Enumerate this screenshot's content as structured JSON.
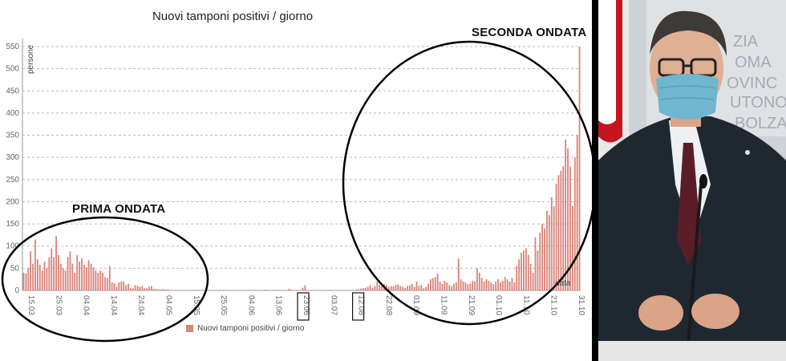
{
  "chart_data": {
    "type": "bar",
    "title": "Nuovi tamponi positivi / giorno",
    "ylabel": "persone",
    "xlabel": "data",
    "legend": "Nuovi tamponi positivi / giorno",
    "legend_placement": "bottom",
    "color": "#d9837a",
    "ylim": [
      0,
      550
    ],
    "yticks": [
      0,
      50,
      100,
      150,
      200,
      250,
      300,
      350,
      400,
      450,
      500,
      550
    ],
    "grid": true,
    "start_date": "15.03",
    "xtick_labels": [
      "15.03",
      "25.03",
      "04.04",
      "14.04",
      "24.04",
      "04.05",
      "15.05",
      "25.05",
      "04.06",
      "13.06",
      "23.06",
      "03.07",
      "12.08",
      "22.08",
      "01.09",
      "11.09",
      "21.09",
      "01.10",
      "11.10",
      "21.10",
      "31.10"
    ],
    "boxed_ticks": [
      "23.06",
      "12.08"
    ],
    "values": [
      40,
      38,
      50,
      88,
      60,
      115,
      70,
      58,
      45,
      65,
      50,
      75,
      95,
      75,
      122,
      80,
      60,
      50,
      45,
      75,
      88,
      60,
      40,
      80,
      65,
      72,
      58,
      52,
      68,
      60,
      52,
      45,
      40,
      45,
      40,
      30,
      28,
      55,
      18,
      16,
      8,
      18,
      20,
      20,
      12,
      15,
      5,
      5,
      12,
      10,
      8,
      10,
      5,
      5,
      8,
      10,
      4,
      3,
      2,
      2,
      3,
      2,
      2,
      1,
      1,
      1,
      1,
      0,
      0,
      0,
      0,
      1,
      1,
      1,
      0,
      0,
      0,
      1,
      0,
      0,
      0,
      1,
      1,
      0,
      0,
      1,
      0,
      0,
      0,
      0,
      0,
      0,
      0,
      0,
      0,
      0,
      0,
      0,
      0,
      1,
      1,
      0,
      0,
      0,
      2,
      1,
      0,
      0,
      1,
      0,
      0,
      0,
      0,
      0,
      3,
      2,
      1,
      0,
      0,
      0,
      6,
      12,
      0,
      0,
      0,
      0,
      0,
      0,
      0,
      0,
      0,
      0,
      0,
      0,
      0,
      0,
      0,
      0,
      0,
      0,
      0,
      0,
      0,
      2,
      3,
      4,
      5,
      6,
      8,
      12,
      6,
      10,
      20,
      12,
      15,
      14,
      12,
      8,
      10,
      9,
      12,
      14,
      10,
      8,
      6,
      10,
      12,
      15,
      8,
      20,
      10,
      12,
      5,
      8,
      15,
      25,
      28,
      30,
      38,
      20,
      15,
      22,
      18,
      12,
      10,
      15,
      18,
      72,
      25,
      20,
      18,
      14,
      15,
      22,
      20,
      50,
      40,
      28,
      20,
      25,
      22,
      18,
      14,
      20,
      25,
      18,
      22,
      30,
      25,
      20,
      28,
      18,
      55,
      70,
      85,
      90,
      95,
      80,
      60,
      40,
      120,
      90,
      130,
      150,
      140,
      180,
      170,
      210,
      190,
      240,
      260,
      270,
      280,
      340,
      320,
      280,
      190,
      300,
      350,
      550
    ]
  },
  "annotations": {
    "first_wave": "PRIMA ONDATA",
    "second_wave": "SECONDA ONDATA"
  },
  "photo": {
    "mask_icon": "face-mask-icon",
    "background_sign": "ZIA\nOMA\nOVINC\nUTONOM\nOLI\nBOLZA\nDI"
  }
}
